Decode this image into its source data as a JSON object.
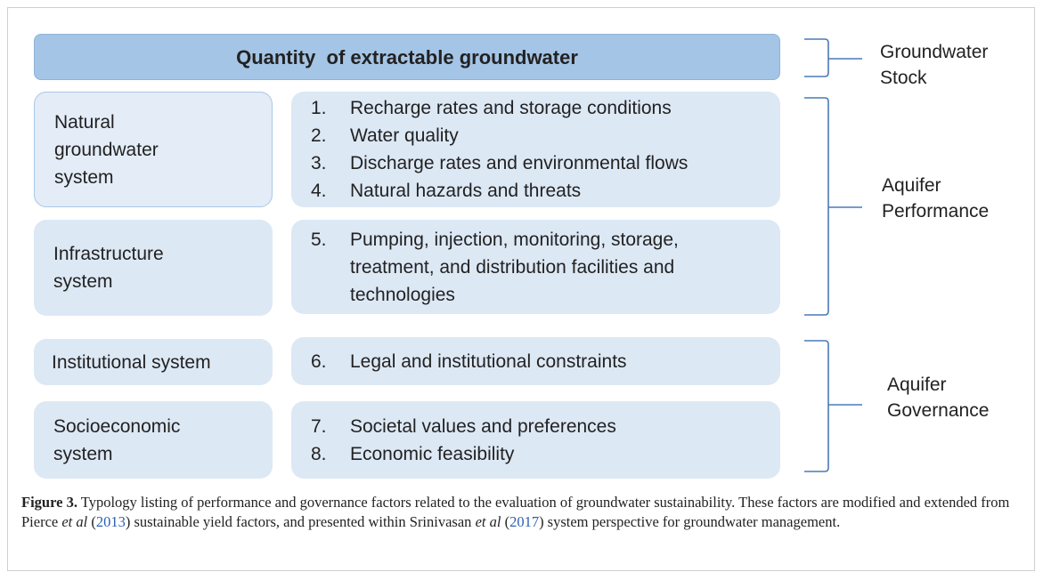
{
  "header": {
    "title": "Quantity  of extractable groundwater"
  },
  "systems": [
    {
      "label": "Natural groundwater system"
    },
    {
      "label": "Infrastructure system"
    },
    {
      "label": "Institutional system"
    },
    {
      "label": "Socioeconomic system"
    }
  ],
  "factors": [
    {
      "number": "1.",
      "text": "Recharge rates and storage conditions"
    },
    {
      "number": "2.",
      "text": "Water quality"
    },
    {
      "number": "3.",
      "text": "Discharge rates and environmental flows"
    },
    {
      "number": "4.",
      "text": "Natural hazards and threats"
    },
    {
      "number": "5.",
      "text": "Pumping, injection, monitoring, storage, treatment, and distribution facilities and technologies"
    },
    {
      "number": "6.",
      "text": "Legal and institutional constraints"
    },
    {
      "number": "7.",
      "text": "Societal values and preferences"
    },
    {
      "number": "8.",
      "text": "Economic feasibility"
    }
  ],
  "groups": [
    {
      "label": "Groundwater Stock"
    },
    {
      "label": "Aquifer Performance"
    },
    {
      "label": "Aquifer Governance"
    }
  ],
  "caption": {
    "label": "Figure 3.",
    "parts": [
      " Typology listing of performance and governance factors related to the evaluation of groundwater sustainability. These factors are modified and extended from Pierce ",
      "et al",
      " (",
      "2013",
      ") sustainable yield factors, and presented within Srinivasan ",
      "et al",
      " (",
      "2017",
      ") system perspective for groundwater management."
    ]
  }
}
